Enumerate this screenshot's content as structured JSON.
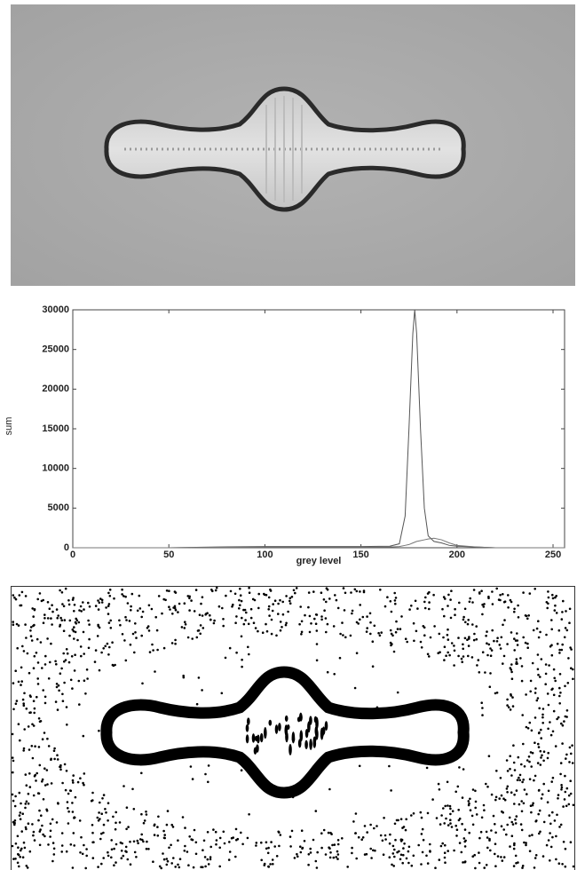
{
  "chart_data": {
    "type": "line",
    "x_label": "grey level",
    "y_label": "sum",
    "x": [
      0,
      25,
      50,
      75,
      100,
      125,
      150,
      165,
      170,
      173,
      175,
      177,
      178,
      179,
      181,
      183,
      185,
      188,
      192,
      196,
      200,
      210,
      220,
      256
    ],
    "series": [
      {
        "color": "#555555",
        "values": [
          0,
          0,
          0,
          100,
          150,
          150,
          150,
          200,
          500,
          4000,
          15000,
          27000,
          30000,
          27000,
          15000,
          5000,
          1500,
          800,
          600,
          300,
          200,
          100,
          0,
          0
        ]
      },
      {
        "color": "#777777",
        "values": [
          0,
          0,
          0,
          50,
          80,
          80,
          80,
          100,
          150,
          300,
          400,
          600,
          700,
          800,
          900,
          1000,
          1100,
          1200,
          1000,
          600,
          300,
          100,
          0,
          0
        ]
      }
    ],
    "xlim": [
      0,
      256
    ],
    "xticks": [
      0,
      50,
      100,
      150,
      200,
      250
    ],
    "ylim": [
      0,
      30000
    ],
    "yticks": [
      0,
      5000,
      10000,
      15000,
      20000,
      25000,
      30000
    ]
  }
}
